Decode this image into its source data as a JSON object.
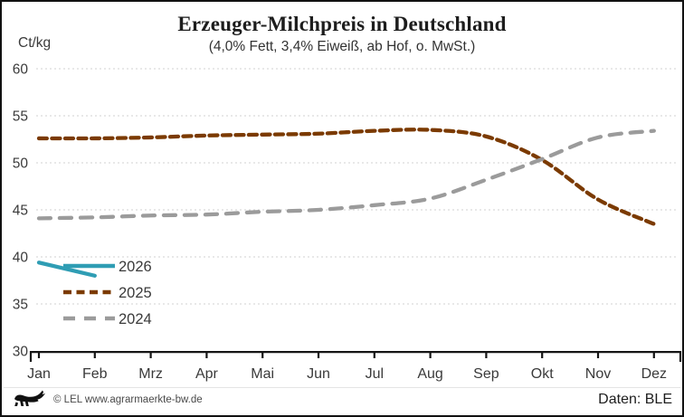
{
  "header": {
    "title": "Erzeuger-Milchpreis in Deutschland",
    "subtitle": "(4,0% Fett, 3,4% Eiweiß, ab Hof, o. MwSt.)",
    "y_unit_label": "Ct/kg"
  },
  "chart_data": {
    "type": "line",
    "title": "Erzeuger-Milchpreis in Deutschland",
    "subtitle": "(4,0% Fett, 3,4% Eiweiß, ab Hof, o. MwSt.)",
    "ylabel": "Ct/kg",
    "xlabel": "",
    "ylim": [
      30,
      60
    ],
    "y_ticks": [
      30,
      35,
      40,
      45,
      50,
      55,
      60
    ],
    "grid": "horizontal-dotted",
    "legend_position": "inside-bottom-left",
    "categories": [
      "Jan",
      "Feb",
      "Mrz",
      "Apr",
      "Mai",
      "Jun",
      "Jul",
      "Aug",
      "Sep",
      "Okt",
      "Nov",
      "Dez"
    ],
    "series": [
      {
        "name": "2026",
        "color": "#2f9db4",
        "style": "solid",
        "values": [
          39.4,
          38.0
        ]
      },
      {
        "name": "2025",
        "color": "#7b3a00",
        "style": "dashed-short",
        "values": [
          52.6,
          52.6,
          52.7,
          52.9,
          53.0,
          53.1,
          53.4,
          53.5,
          52.8,
          50.3,
          46.1,
          43.5
        ]
      },
      {
        "name": "2024",
        "color": "#9b9b9b",
        "style": "dashed-long",
        "values": [
          44.1,
          44.2,
          44.4,
          44.5,
          44.8,
          45.0,
          45.5,
          46.2,
          48.2,
          50.4,
          52.7,
          53.4
        ]
      }
    ]
  },
  "footer": {
    "logo_icon": "bw-lion-logo",
    "copyright": "© LEL www.agrarmaerkte-bw.de",
    "source": "Daten: BLE"
  }
}
